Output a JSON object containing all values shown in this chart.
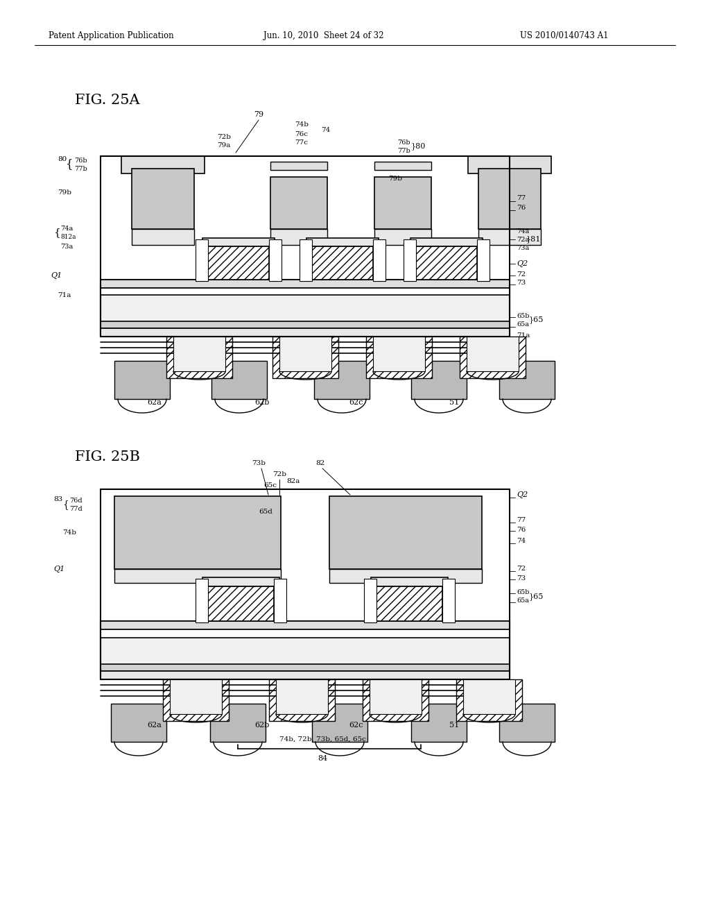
{
  "header_left": "Patent Application Publication",
  "header_mid": "Jun. 10, 2010  Sheet 24 of 32",
  "header_right": "US 2010/0140743 A1",
  "fig_a_label": "FIG. 25A",
  "fig_b_label": "FIG. 25B",
  "bg": "#ffffff",
  "fg": "#000000",
  "dot_fill": "#c8c8c8",
  "light_fill": "#ececec",
  "note_b": "74b, 72b, 73b, 65d, 65c",
  "note_b_label": "84"
}
